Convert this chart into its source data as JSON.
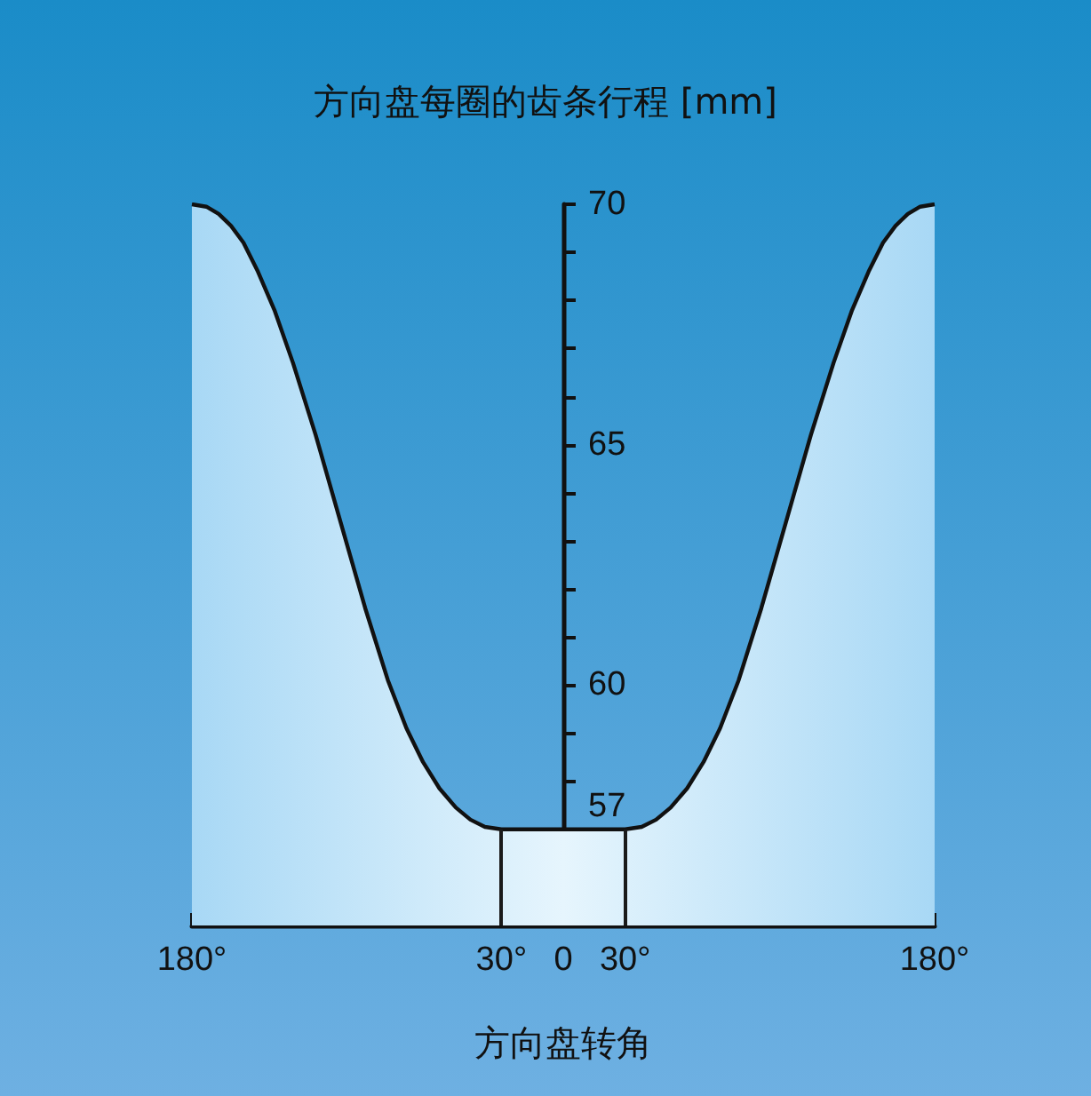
{
  "chart_data": {
    "type": "area",
    "title": "方向盘每圈的齿条行程 [mm]",
    "xlabel": "方向盘转角",
    "x": [
      -180,
      -173,
      -167,
      -161,
      -155,
      -148,
      -140,
      -131,
      -120,
      -108,
      -96,
      -85,
      -76,
      -68,
      -60,
      -52,
      -45,
      -38,
      -30,
      0,
      30,
      38,
      45,
      52,
      60,
      68,
      76,
      85,
      96,
      108,
      120,
      131,
      140,
      148,
      155,
      161,
      167,
      173,
      180
    ],
    "series": [
      {
        "color": "#a8d8f5",
        "values": [
          70,
          69.95,
          69.8,
          69.55,
          69.2,
          68.6,
          67.8,
          66.7,
          65.2,
          63.4,
          61.6,
          60.1,
          59.1,
          58.4,
          57.85,
          57.45,
          57.2,
          57.05,
          57,
          57,
          57,
          57.05,
          57.2,
          57.45,
          57.85,
          58.4,
          59.1,
          60.1,
          61.6,
          63.4,
          65.2,
          66.7,
          67.8,
          68.6,
          69.2,
          69.55,
          69.8,
          69.95,
          70
        ]
      }
    ],
    "xlim": [
      -180,
      180
    ],
    "xticks": [
      {
        "value": -180,
        "label": "180°"
      },
      {
        "value": -150,
        "label": null
      },
      {
        "value": -120,
        "label": null
      },
      {
        "value": -90,
        "label": null
      },
      {
        "value": -60,
        "label": null
      },
      {
        "value": -30,
        "label": "30°"
      },
      0,
      {
        "value": 30,
        "label": "30°"
      },
      {
        "value": 60,
        "label": null
      },
      {
        "value": 90,
        "label": null
      },
      {
        "value": 120,
        "label": null
      },
      {
        "value": 150,
        "label": null
      },
      {
        "value": 180,
        "label": "180°"
      }
    ],
    "ylim": [
      55,
      70
    ],
    "yticks": [
      {
        "value": 56,
        "label": null
      },
      57,
      {
        "value": 58,
        "label": null
      },
      {
        "value": 59,
        "label": null
      },
      60,
      {
        "value": 61,
        "label": null
      },
      {
        "value": 62,
        "label": null
      },
      {
        "value": 63,
        "label": null
      },
      {
        "value": 64,
        "label": null
      },
      65,
      {
        "value": 66,
        "label": null
      },
      {
        "value": 67,
        "label": null
      },
      {
        "value": 68,
        "label": null
      },
      {
        "value": 69,
        "label": null
      },
      70
    ],
    "ref_lines": [
      {
        "axis": "x",
        "value": -30,
        "color": "#1a1a1a"
      },
      {
        "axis": "x",
        "value": 30,
        "color": "#1a1a1a"
      }
    ],
    "marker": "none",
    "line_style": "solid"
  }
}
